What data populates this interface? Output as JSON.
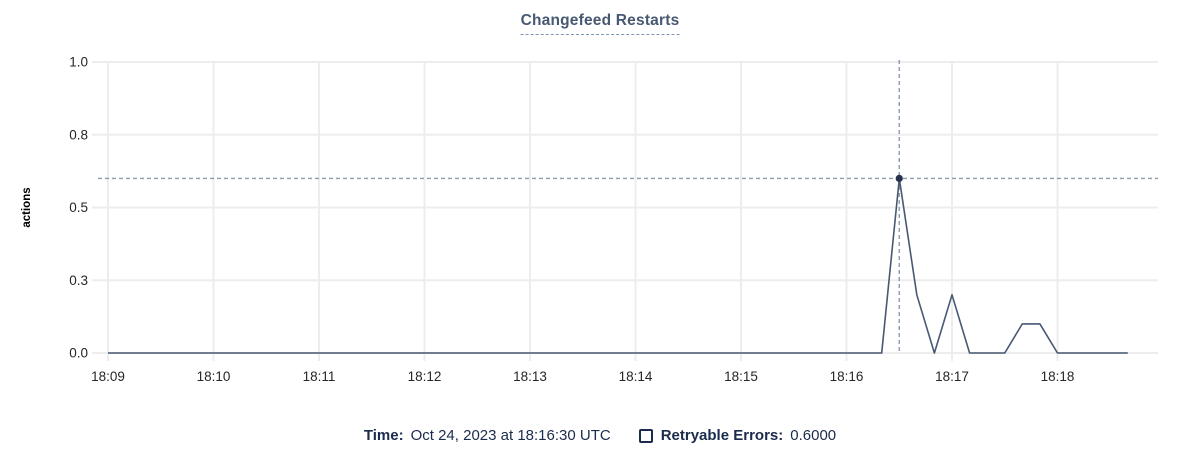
{
  "header": {
    "title": "Changefeed Restarts"
  },
  "footer": {
    "time_label": "Time:",
    "time_value": "Oct 24, 2023 at 18:16:30 UTC",
    "legend_checkbox_state": "unchecked",
    "series_label": "Retryable Errors:",
    "series_value": "0.6000"
  },
  "colors": {
    "title": "#475872",
    "line": "#475872",
    "dot": "#26334d",
    "crosshair": "#8b9cae",
    "grid": "#ededed",
    "axis_text": "#262626",
    "axis_label_text": "#000000",
    "footer_text": "#1b2b4c"
  },
  "chart_data": {
    "type": "line",
    "title": "Changefeed Restarts",
    "xlabel": "",
    "ylabel": "actions",
    "ylim": [
      0,
      1.0
    ],
    "grid": true,
    "legend_position": "bottom",
    "x_tick_labels": [
      "18:09",
      "18:10",
      "18:11",
      "18:12",
      "18:13",
      "18:14",
      "18:15",
      "18:16",
      "18:17",
      "18:18"
    ],
    "y_ticks": [
      {
        "value": 0.0,
        "label": "0.0"
      },
      {
        "value": 0.25,
        "label": "0.3"
      },
      {
        "value": 0.5,
        "label": "0.5"
      },
      {
        "value": 0.75,
        "label": "0.8"
      },
      {
        "value": 1.0,
        "label": "1.0"
      }
    ],
    "start_time": "18:09:00",
    "step_seconds": 10,
    "series": [
      {
        "name": "Retryable Errors",
        "color": "#475872",
        "values": [
          0,
          0,
          0,
          0,
          0,
          0,
          0,
          0,
          0,
          0,
          0,
          0,
          0,
          0,
          0,
          0,
          0,
          0,
          0,
          0,
          0,
          0,
          0,
          0,
          0,
          0,
          0,
          0,
          0,
          0,
          0,
          0,
          0,
          0,
          0,
          0,
          0,
          0,
          0,
          0,
          0,
          0,
          0,
          0,
          0,
          0.6,
          0.2,
          0,
          0.2,
          0,
          0,
          0,
          0.1,
          0.1,
          0,
          0,
          0,
          0,
          0
        ]
      }
    ],
    "crosshair": {
      "time": "18:16:30",
      "x_offset_seconds": 450,
      "value": 0.6
    }
  }
}
